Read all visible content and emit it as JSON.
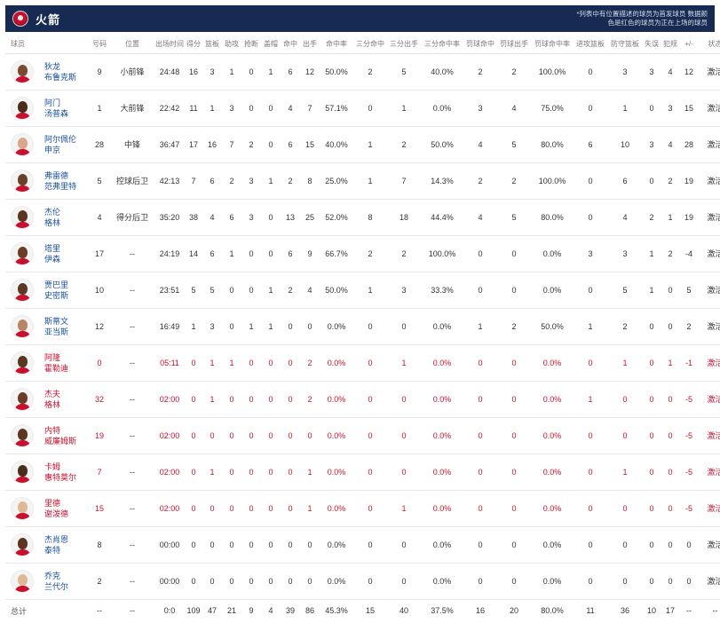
{
  "header": {
    "team_name": "火箭",
    "note": "*列表中有位置描述的球员为首发球员 数据颜色是红色的球员为正在上场的球员"
  },
  "columns": [
    "球员",
    "号码",
    "位置",
    "出场时间",
    "得分",
    "篮板",
    "助攻",
    "抢断",
    "盖帽",
    "命中",
    "出手",
    "命中率",
    "三分命中",
    "三分出手",
    "三分命中率",
    "罚球命中",
    "罚球出手",
    "罚球命中率",
    "进攻篮板",
    "防守篮板",
    "失误",
    "犯规",
    "+/-",
    "状态"
  ],
  "players": [
    {
      "name": [
        "狄龙",
        "布鲁克斯"
      ],
      "red": false,
      "skin": "#7a4a30",
      "num": "9",
      "pos": "小前锋",
      "min": "24:48",
      "pts": "16",
      "reb": "3",
      "ast": "1",
      "stl": "0",
      "blk": "1",
      "fgm": "6",
      "fga": "12",
      "fgp": "50.0%",
      "tpm": "2",
      "tpa": "5",
      "tpp": "40.0%",
      "ftm": "2",
      "fta": "2",
      "ftp": "100.0%",
      "oreb": "0",
      "dreb": "3",
      "tov": "3",
      "pf": "4",
      "pm": "12",
      "status": "激活"
    },
    {
      "name": [
        "阿门",
        "汤普森"
      ],
      "red": false,
      "skin": "#4a2c1a",
      "num": "1",
      "pos": "大前锋",
      "min": "22:42",
      "pts": "11",
      "reb": "1",
      "ast": "3",
      "stl": "0",
      "blk": "0",
      "fgm": "4",
      "fga": "7",
      "fgp": "57.1%",
      "tpm": "0",
      "tpa": "1",
      "tpp": "0.0%",
      "ftm": "3",
      "fta": "4",
      "ftp": "75.0%",
      "oreb": "0",
      "dreb": "1",
      "tov": "0",
      "pf": "3",
      "pm": "15",
      "status": "激活"
    },
    {
      "name": [
        "阿尔佩伦",
        "申京"
      ],
      "red": false,
      "skin": "#d9a88a",
      "num": "28",
      "pos": "中锋",
      "min": "36:47",
      "pts": "17",
      "reb": "16",
      "ast": "7",
      "stl": "2",
      "blk": "0",
      "fgm": "6",
      "fga": "15",
      "fgp": "40.0%",
      "tpm": "1",
      "tpa": "2",
      "tpp": "50.0%",
      "ftm": "4",
      "fta": "5",
      "ftp": "80.0%",
      "oreb": "6",
      "dreb": "10",
      "tov": "3",
      "pf": "4",
      "pm": "28",
      "status": "激活"
    },
    {
      "name": [
        "弗雷德",
        "范弗里特"
      ],
      "red": false,
      "skin": "#6b4028",
      "num": "5",
      "pos": "控球后卫",
      "min": "42:13",
      "pts": "7",
      "reb": "6",
      "ast": "2",
      "stl": "3",
      "blk": "1",
      "fgm": "2",
      "fga": "8",
      "fgp": "25.0%",
      "tpm": "1",
      "tpa": "7",
      "tpp": "14.3%",
      "ftm": "2",
      "fta": "2",
      "ftp": "100.0%",
      "oreb": "0",
      "dreb": "6",
      "tov": "0",
      "pf": "2",
      "pm": "19",
      "status": "激活"
    },
    {
      "name": [
        "杰伦",
        "格林"
      ],
      "red": false,
      "skin": "#5a3520",
      "num": "4",
      "pos": "得分后卫",
      "min": "35:20",
      "pts": "38",
      "reb": "4",
      "ast": "6",
      "stl": "3",
      "blk": "0",
      "fgm": "13",
      "fga": "25",
      "fgp": "52.0%",
      "tpm": "8",
      "tpa": "18",
      "tpp": "44.4%",
      "ftm": "4",
      "fta": "5",
      "ftp": "80.0%",
      "oreb": "0",
      "dreb": "4",
      "tov": "2",
      "pf": "1",
      "pm": "19",
      "status": "激活"
    },
    {
      "name": [
        "塔里",
        "伊森"
      ],
      "red": false,
      "skin": "#6a3e26",
      "num": "17",
      "pos": "--",
      "min": "24:19",
      "pts": "14",
      "reb": "6",
      "ast": "1",
      "stl": "0",
      "blk": "0",
      "fgm": "6",
      "fga": "9",
      "fgp": "66.7%",
      "tpm": "2",
      "tpa": "2",
      "tpp": "100.0%",
      "ftm": "0",
      "fta": "0",
      "ftp": "0.0%",
      "oreb": "3",
      "dreb": "3",
      "tov": "1",
      "pf": "2",
      "pm": "-4",
      "status": "激活"
    },
    {
      "name": [
        "贾巴里",
        "史密斯"
      ],
      "red": false,
      "skin": "#5d3822",
      "num": "10",
      "pos": "--",
      "min": "23:51",
      "pts": "5",
      "reb": "5",
      "ast": "0",
      "stl": "0",
      "blk": "1",
      "fgm": "2",
      "fga": "4",
      "fgp": "50.0%",
      "tpm": "1",
      "tpa": "3",
      "tpp": "33.3%",
      "ftm": "0",
      "fta": "0",
      "ftp": "0.0%",
      "oreb": "0",
      "dreb": "5",
      "tov": "1",
      "pf": "0",
      "pm": "5",
      "status": "激活"
    },
    {
      "name": [
        "斯蒂文",
        "亚当斯"
      ],
      "red": false,
      "skin": "#b98463",
      "num": "12",
      "pos": "--",
      "min": "16:49",
      "pts": "1",
      "reb": "3",
      "ast": "0",
      "stl": "1",
      "blk": "1",
      "fgm": "0",
      "fga": "0",
      "fgp": "0.0%",
      "tpm": "0",
      "tpa": "0",
      "tpp": "0.0%",
      "ftm": "1",
      "fta": "2",
      "ftp": "50.0%",
      "oreb": "1",
      "dreb": "2",
      "tov": "0",
      "pf": "0",
      "pm": "2",
      "status": "激活"
    },
    {
      "name": [
        "阿隆",
        "霍勒迪"
      ],
      "red": true,
      "skin": "#5a3520",
      "num": "0",
      "pos": "--",
      "min": "05:11",
      "pts": "0",
      "reb": "1",
      "ast": "1",
      "stl": "0",
      "blk": "0",
      "fgm": "0",
      "fga": "2",
      "fgp": "0.0%",
      "tpm": "0",
      "tpa": "1",
      "tpp": "0.0%",
      "ftm": "0",
      "fta": "0",
      "ftp": "0.0%",
      "oreb": "0",
      "dreb": "1",
      "tov": "0",
      "pf": "1",
      "pm": "-1",
      "status": "激活"
    },
    {
      "name": [
        "杰夫",
        "格林"
      ],
      "red": true,
      "skin": "#6a3e26",
      "num": "32",
      "pos": "--",
      "min": "02:00",
      "pts": "0",
      "reb": "1",
      "ast": "0",
      "stl": "0",
      "blk": "0",
      "fgm": "0",
      "fga": "2",
      "fgp": "0.0%",
      "tpm": "0",
      "tpa": "0",
      "tpp": "0.0%",
      "ftm": "0",
      "fta": "0",
      "ftp": "0.0%",
      "oreb": "1",
      "dreb": "0",
      "tov": "0",
      "pf": "0",
      "pm": "-5",
      "status": "激活"
    },
    {
      "name": [
        "内特",
        "威廉姆斯"
      ],
      "red": true,
      "skin": "#5a3520",
      "num": "19",
      "pos": "--",
      "min": "02:00",
      "pts": "0",
      "reb": "0",
      "ast": "0",
      "stl": "0",
      "blk": "0",
      "fgm": "0",
      "fga": "0",
      "fgp": "0.0%",
      "tpm": "0",
      "tpa": "0",
      "tpp": "0.0%",
      "ftm": "0",
      "fta": "0",
      "ftp": "0.0%",
      "oreb": "0",
      "dreb": "0",
      "tov": "0",
      "pf": "0",
      "pm": "-5",
      "status": "激活"
    },
    {
      "name": [
        "卡姆",
        "惠特莫尔"
      ],
      "red": true,
      "skin": "#4a2c1a",
      "num": "7",
      "pos": "--",
      "min": "02:00",
      "pts": "0",
      "reb": "1",
      "ast": "0",
      "stl": "0",
      "blk": "0",
      "fgm": "0",
      "fga": "1",
      "fgp": "0.0%",
      "tpm": "0",
      "tpa": "0",
      "tpp": "0.0%",
      "ftm": "0",
      "fta": "0",
      "ftp": "0.0%",
      "oreb": "0",
      "dreb": "1",
      "tov": "0",
      "pf": "0",
      "pm": "-5",
      "status": "激活"
    },
    {
      "name": [
        "里德",
        "谢泼德"
      ],
      "red": true,
      "skin": "#e0b898",
      "num": "15",
      "pos": "--",
      "min": "02:00",
      "pts": "0",
      "reb": "0",
      "ast": "0",
      "stl": "0",
      "blk": "0",
      "fgm": "0",
      "fga": "1",
      "fgp": "0.0%",
      "tpm": "0",
      "tpa": "1",
      "tpp": "0.0%",
      "ftm": "0",
      "fta": "0",
      "ftp": "0.0%",
      "oreb": "0",
      "dreb": "0",
      "tov": "0",
      "pf": "0",
      "pm": "-5",
      "status": "激活"
    },
    {
      "name": [
        "杰肖恩",
        "泰特"
      ],
      "red": false,
      "skin": "#5a3520",
      "num": "8",
      "pos": "--",
      "min": "00:00",
      "pts": "0",
      "reb": "0",
      "ast": "0",
      "stl": "0",
      "blk": "0",
      "fgm": "0",
      "fga": "0",
      "fgp": "0.0%",
      "tpm": "0",
      "tpa": "0",
      "tpp": "0.0%",
      "ftm": "0",
      "fta": "0",
      "ftp": "0.0%",
      "oreb": "0",
      "dreb": "0",
      "tov": "0",
      "pf": "0",
      "pm": "0",
      "status": "激活"
    },
    {
      "name": [
        "乔克",
        "兰代尔"
      ],
      "red": false,
      "skin": "#e0b898",
      "num": "2",
      "pos": "--",
      "min": "00:00",
      "pts": "0",
      "reb": "0",
      "ast": "0",
      "stl": "0",
      "blk": "0",
      "fgm": "0",
      "fga": "0",
      "fgp": "0.0%",
      "tpm": "0",
      "tpa": "0",
      "tpp": "0.0%",
      "ftm": "0",
      "fta": "0",
      "ftp": "0.0%",
      "oreb": "0",
      "dreb": "0",
      "tov": "0",
      "pf": "0",
      "pm": "0",
      "status": "激活"
    }
  ],
  "totals": {
    "label": "总计",
    "num": "--",
    "pos": "--",
    "min": "0:0",
    "pts": "109",
    "reb": "47",
    "ast": "21",
    "stl": "9",
    "blk": "4",
    "fgm": "39",
    "fga": "86",
    "fgp": "45.3%",
    "tpm": "15",
    "tpa": "40",
    "tpp": "37.5%",
    "ftm": "16",
    "fta": "20",
    "ftp": "80.0%",
    "oreb": "11",
    "dreb": "36",
    "tov": "10",
    "pf": "17",
    "pm": "--",
    "status": "--"
  },
  "colors": {
    "header_bg": "#162a52",
    "active_red": "#c8102e",
    "name_blue": "#1a4fa0",
    "jersey_red": "#c8102e"
  }
}
